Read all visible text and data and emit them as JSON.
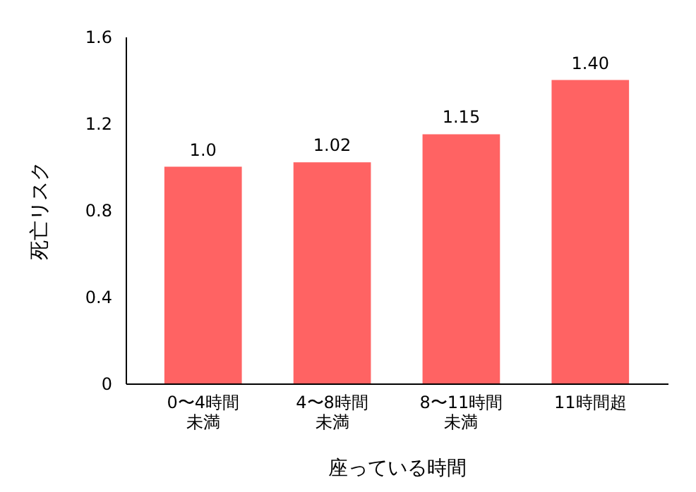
{
  "chart_data": {
    "type": "bar",
    "categories": [
      "0〜4時間未満",
      "4〜8時間未満",
      "8〜11時間未満",
      "11時間超"
    ],
    "values": [
      1.0,
      1.02,
      1.15,
      1.4
    ],
    "value_labels": [
      "1.0",
      "1.02",
      "1.15",
      "1.40"
    ],
    "color": "#ff6363",
    "xlabel": "座っている時間",
    "ylabel": "死亡リスク",
    "ylim": [
      0,
      1.6
    ],
    "yticks": [
      {
        "value": 0,
        "label": "0"
      },
      0.4,
      0.8,
      1.2,
      1.6
    ],
    "grid": false
  }
}
